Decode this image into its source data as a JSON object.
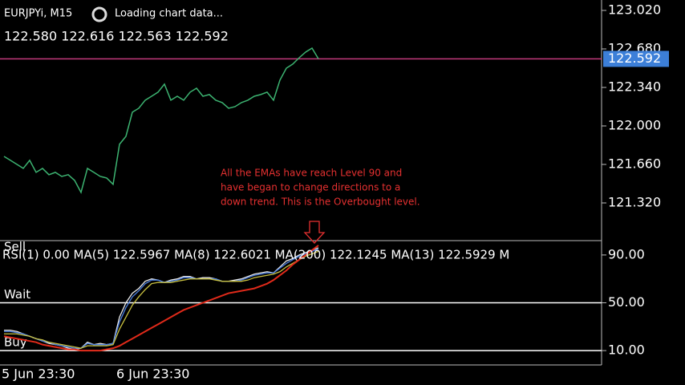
{
  "chart_data": [
    {
      "type": "line",
      "title": "EURJPYi, M15",
      "status": "Loading chart data...",
      "ohlc": "122.580 122.616 122.563 122.592",
      "annotation": [
        "All the EMAs have reach Level 90 and",
        "have began to change directions to a",
        "down trend. This is the Overbought level."
      ],
      "ylim": [
        120.987,
        123.112
      ],
      "yticks": [
        {
          "value": 123.02,
          "label": "123.020"
        },
        {
          "value": 122.68,
          "label": "122.680"
        },
        {
          "value": 122.34,
          "label": "122.340"
        },
        {
          "value": 122.0,
          "label": "122.000"
        },
        {
          "value": 121.66,
          "label": "121.660"
        },
        {
          "value": 121.32,
          "label": "121.320"
        }
      ],
      "price_line": {
        "value": 122.592,
        "label": "122.592"
      },
      "color": "#3cb371",
      "values": [
        121.731,
        121.696,
        121.661,
        121.625,
        121.696,
        121.59,
        121.625,
        121.569,
        121.59,
        121.554,
        121.569,
        121.519,
        121.413,
        121.625,
        121.59,
        121.554,
        121.54,
        121.484,
        121.838,
        121.908,
        122.121,
        122.156,
        122.227,
        122.262,
        122.298,
        122.369,
        122.227,
        122.262,
        122.227,
        122.298,
        122.333,
        122.262,
        122.277,
        122.227,
        122.206,
        122.156,
        122.17,
        122.206,
        122.227,
        122.262,
        122.277,
        122.298,
        122.227,
        122.404,
        122.51,
        122.546,
        122.602,
        122.652,
        122.687,
        122.592
      ]
    },
    {
      "type": "line",
      "header": "RSI(1) 0.00 MA(5) 122.5967 MA(8) 122.6021 MA(200) 122.1245 MA(13) 122.5929 M",
      "ylim": [
        -2,
        102
      ],
      "yticks": [
        {
          "value": 90,
          "label": "90.00"
        },
        {
          "value": 50,
          "label": "50.00"
        },
        {
          "value": 10,
          "label": "10.00"
        }
      ],
      "levels": [
        {
          "value": 90,
          "label": "Sell"
        },
        {
          "value": 50,
          "label": "Wait"
        },
        {
          "value": 10,
          "label": "Buy"
        }
      ],
      "categories": [
        "5 Jun 23:30",
        null,
        null,
        null,
        null,
        null,
        null,
        null,
        null,
        null,
        null,
        null,
        null,
        null,
        null,
        null,
        null,
        null,
        "6 Jun 23:30",
        null,
        null,
        null,
        null,
        null,
        null,
        null,
        null,
        null,
        null,
        null,
        null,
        null,
        null,
        null,
        null,
        null,
        null,
        null,
        null,
        null,
        null,
        null,
        null,
        null,
        null,
        null,
        null,
        null,
        null,
        null
      ],
      "series": [
        {
          "color": "#e8e8e8",
          "values": [
            27,
            27,
            26,
            24,
            22,
            20,
            18,
            16,
            15,
            14,
            12,
            11,
            12,
            17,
            15,
            16,
            15,
            16,
            38,
            50,
            58,
            62,
            68,
            70,
            69,
            67,
            69,
            70,
            72,
            72,
            70,
            71,
            71,
            70,
            68,
            68,
            69,
            70,
            72,
            74,
            75,
            76,
            75,
            80,
            85,
            87,
            90,
            92,
            94,
            96
          ]
        },
        {
          "color": "#4a7fe0",
          "values": [
            26,
            26,
            25,
            24,
            22,
            20,
            18,
            17,
            15,
            14,
            13,
            12,
            12,
            16,
            15,
            15,
            15,
            16,
            34,
            46,
            55,
            60,
            66,
            69,
            69,
            67,
            68,
            69,
            71,
            71,
            70,
            70,
            70,
            70,
            68,
            68,
            68,
            69,
            71,
            73,
            74,
            75,
            75,
            79,
            83,
            86,
            89,
            91,
            93,
            95
          ]
        },
        {
          "color": "#c8c040",
          "values": [
            24,
            24,
            24,
            23,
            22,
            20,
            19,
            17,
            16,
            15,
            14,
            13,
            12,
            14,
            14,
            14,
            14,
            15,
            28,
            38,
            48,
            55,
            61,
            66,
            67,
            67,
            67,
            68,
            69,
            70,
            70,
            70,
            70,
            69,
            68,
            68,
            68,
            68,
            69,
            71,
            72,
            73,
            74,
            76,
            80,
            83,
            86,
            89,
            91,
            93
          ]
        },
        {
          "color": "#e02a1a",
          "values": [
            22,
            21,
            20,
            19,
            18,
            17,
            15,
            14,
            13,
            12,
            11,
            11,
            10,
            10,
            10,
            10,
            11,
            12,
            14,
            17,
            20,
            23,
            26,
            29,
            32,
            35,
            38,
            41,
            44,
            46,
            48,
            50,
            52,
            54,
            56,
            58,
            59,
            60,
            61,
            62,
            64,
            66,
            69,
            73,
            77,
            82,
            86,
            90,
            94,
            98
          ]
        }
      ]
    }
  ]
}
